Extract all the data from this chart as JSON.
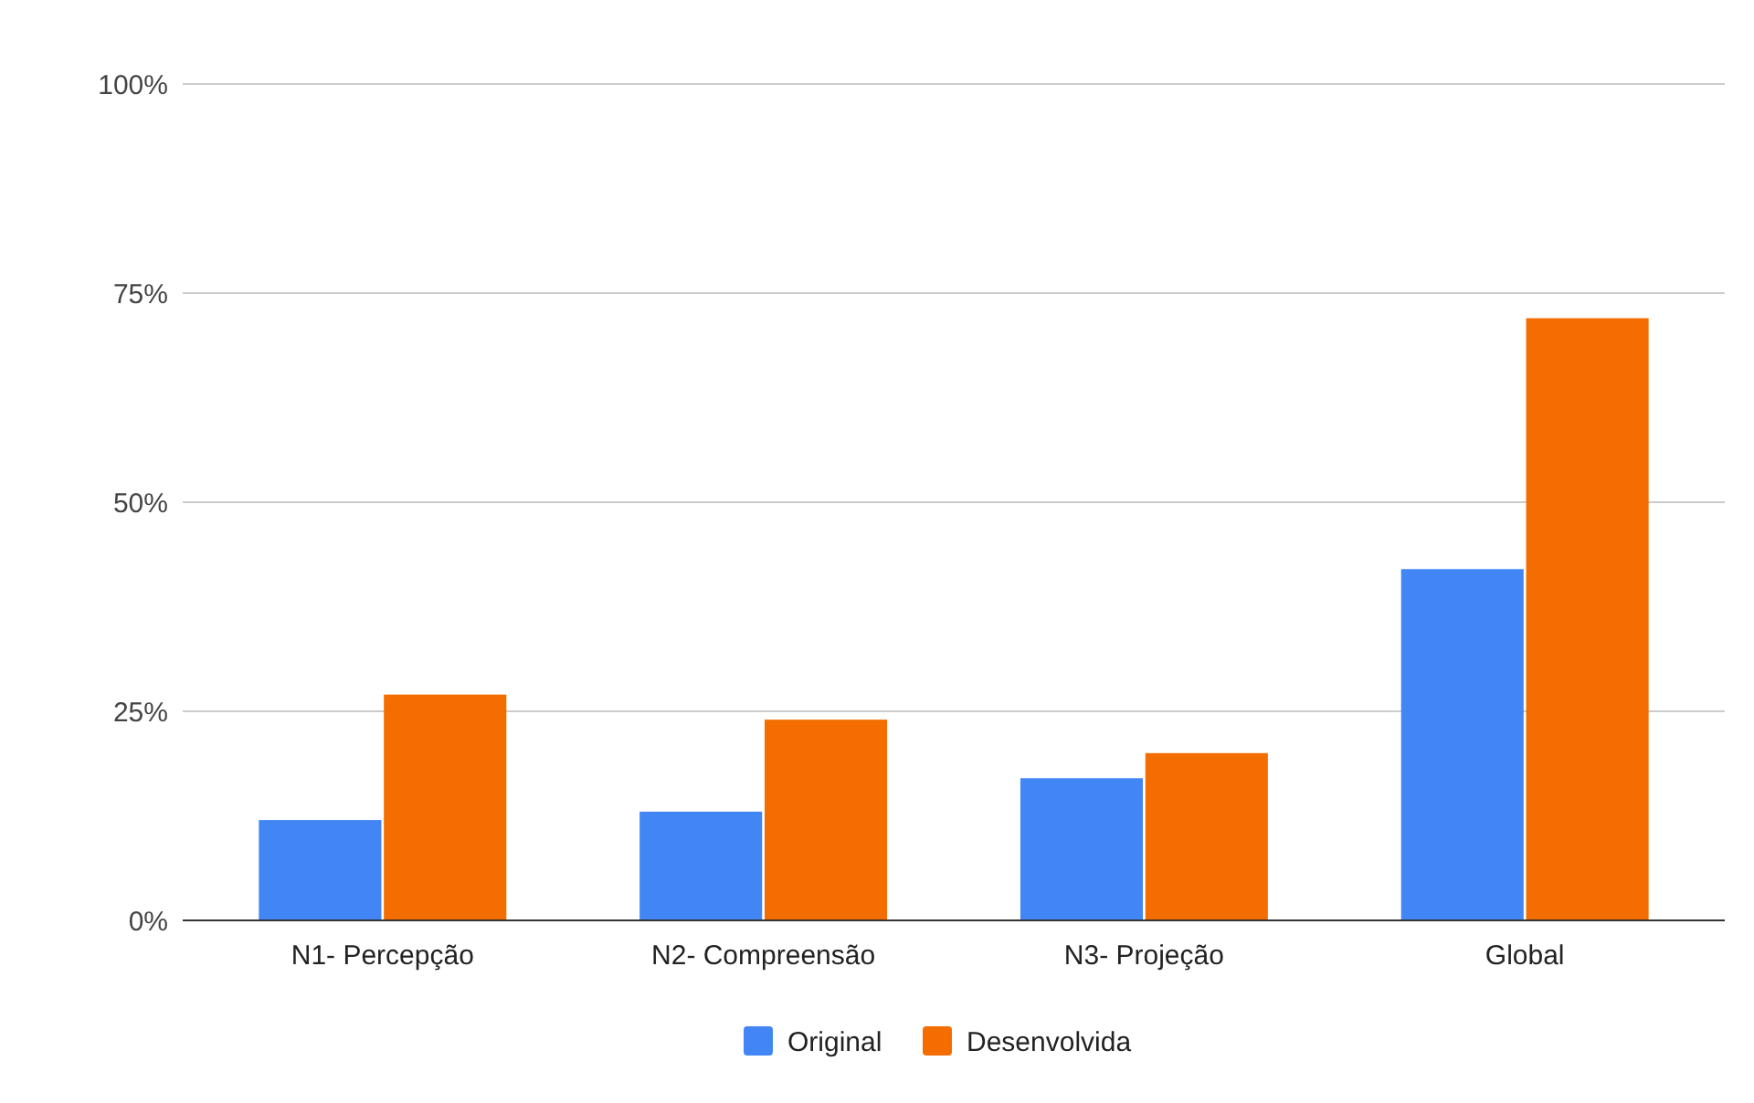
{
  "chart_data": {
    "type": "bar",
    "categories": [
      "N1- Percepção",
      "N2- Compreensão",
      "N3- Projeção",
      "Global"
    ],
    "series": [
      {
        "name": "Original",
        "color": "#4285f4",
        "values": [
          12,
          13,
          17,
          42
        ]
      },
      {
        "name": "Desenvolvida",
        "color": "#f46d00",
        "values": [
          27,
          24,
          20,
          72
        ]
      }
    ],
    "ylim": [
      0,
      100
    ],
    "yticks": [
      {
        "value": 0,
        "label": "0%"
      },
      {
        "value": 25,
        "label": "25%"
      },
      {
        "value": 50,
        "label": "50%"
      },
      {
        "value": 75,
        "label": "75%"
      },
      {
        "value": 100,
        "label": "100%"
      }
    ],
    "grid": "y",
    "legend": "bottom"
  }
}
